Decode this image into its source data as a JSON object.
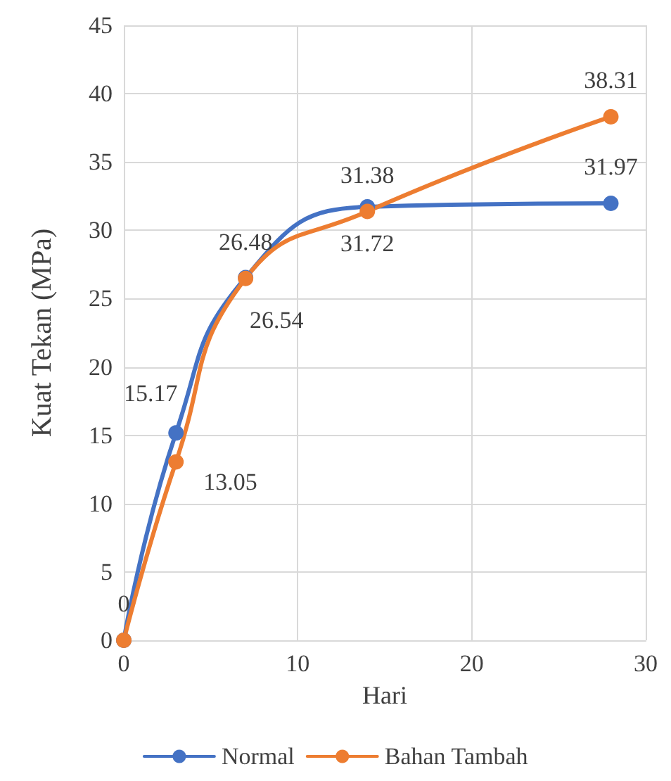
{
  "chart_data": {
    "type": "line",
    "xlabel": "Hari",
    "ylabel": "Kuat Tekan (MPa)",
    "x": [
      0,
      3,
      7,
      14,
      28
    ],
    "series": [
      {
        "name": "Normal",
        "color": "#4472c4",
        "values": [
          0,
          15.17,
          26.54,
          31.72,
          31.97
        ],
        "value_labels": [
          null,
          "15.17",
          "26.54",
          "31.72",
          "31.97"
        ]
      },
      {
        "name": "Bahan Tambah",
        "color": "#ed7d31",
        "values": [
          0,
          13.05,
          26.48,
          31.38,
          38.31
        ],
        "value_labels": [
          "0",
          "13.05",
          "26.48",
          "31.38",
          "38.31"
        ]
      }
    ],
    "xlim": [
      0,
      30
    ],
    "xticks": [
      0,
      10,
      20,
      30
    ],
    "ylim": [
      0,
      45
    ],
    "yticks": [
      0,
      5,
      10,
      15,
      20,
      25,
      30,
      35,
      40,
      45
    ],
    "grid": true,
    "legend": "bottom",
    "marker": "circle",
    "line_style": "solid"
  }
}
